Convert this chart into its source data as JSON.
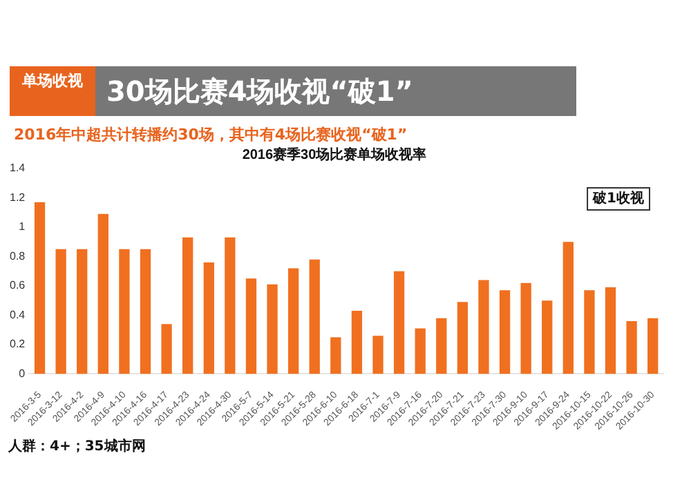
{
  "chart_data": {
    "type": "bar",
    "title": "2016赛季30场比赛单场收视率",
    "subtitle": "2016年中超共计转播约30场，其中有4场比赛收视“破1”",
    "annotations": [
      "单场收视",
      "30场比赛4场收视“破1”",
      "破1收视",
      "人群：4+；35城市网"
    ],
    "categories": [
      "2016-3-5",
      "2016-3-12",
      "2016-4-2",
      "2016-4-9",
      "2016-4-10",
      "2016-4-16",
      "2016-4-17",
      "2016-4-23",
      "2016-4-24",
      "2016-4-30",
      "2016-5-7",
      "2016-5-14",
      "2016-5-21",
      "2016-5-28",
      "2016-6-10",
      "2016-6-18",
      "2016-7-1",
      "2016-7-9",
      "2016-7-16",
      "2016-7-20",
      "2016-7-21",
      "2016-7-23",
      "2016-7-30",
      "2016-9-10",
      "2016-9-17",
      "2016-9-24",
      "2016-10-15",
      "2016-10-22",
      "2016-10-26",
      "2016-10-30"
    ],
    "values": [
      1.17,
      0.85,
      0.85,
      1.09,
      0.85,
      0.85,
      0.34,
      0.93,
      0.76,
      0.93,
      0.65,
      0.61,
      0.72,
      0.78,
      0.25,
      0.43,
      0.26,
      0.7,
      0.31,
      0.38,
      0.49,
      0.64,
      0.57,
      0.62,
      0.5,
      0.9,
      0.57,
      0.59,
      0.36,
      0.38
    ],
    "color": "#f07020",
    "ylim": [
      0,
      1.4
    ],
    "yticks": [
      0,
      0.2,
      0.4,
      0.6,
      0.8,
      1,
      1.2,
      1.4
    ],
    "grid": false
  }
}
